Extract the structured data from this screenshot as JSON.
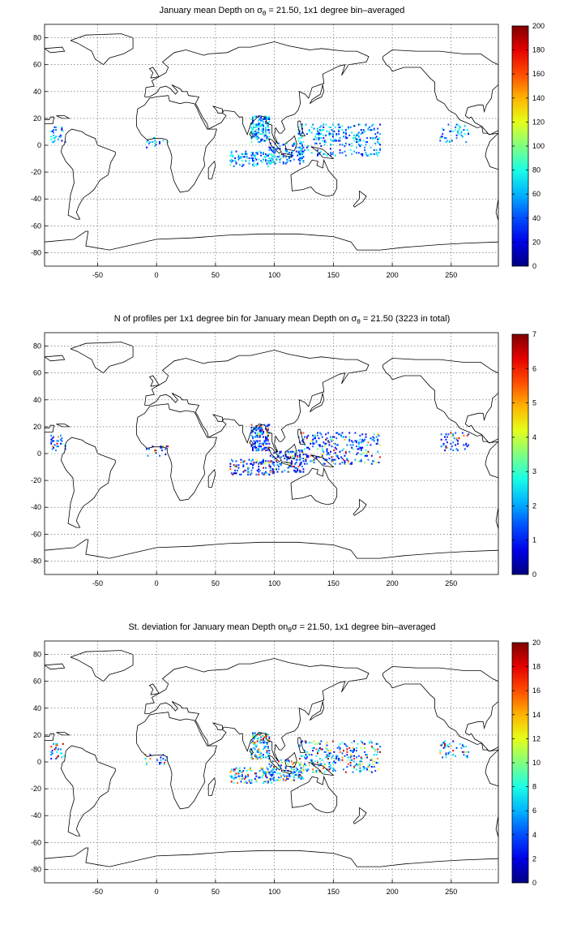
{
  "panels": [
    {
      "title_pre": "January mean Depth on σ",
      "title_sub": "θ",
      "title_post": " = 21.50, 1x1 degree bin–averaged",
      "colorbar": {
        "ticks": [
          "0",
          "20",
          "40",
          "60",
          "80",
          "100",
          "120",
          "140",
          "160",
          "180",
          "200"
        ],
        "min": 0,
        "max": 200
      },
      "layer": "mean-depth",
      "seed": 11
    },
    {
      "title_pre": "N of profiles per 1x1 degree bin for January mean Depth on σ",
      "title_sub": "θ",
      "title_post": " = 21.50 (3223 in total)",
      "colorbar": {
        "ticks": [
          "0",
          "1",
          "2",
          "3",
          "4",
          "5",
          "6",
          "7"
        ],
        "min": 0,
        "max": 7
      },
      "layer": "n-profiles",
      "seed": 23
    },
    {
      "title_pre": "St. deviation for January mean Depth on",
      "title_sub": "θ",
      "title_post": "σ = 21.50, 1x1 degree bin–averaged",
      "colorbar": {
        "ticks": [
          "0",
          "2",
          "4",
          "6",
          "8",
          "10",
          "12",
          "14",
          "16",
          "18",
          "20"
        ],
        "min": 0,
        "max": 20
      },
      "layer": "std-dev",
      "seed": 37
    }
  ],
  "axes": {
    "x_ticks": [
      "-50",
      "0",
      "50",
      "100",
      "150",
      "200",
      "250"
    ],
    "y_ticks": [
      "80",
      "60",
      "40",
      "20",
      "0",
      "-20",
      "-40",
      "-60",
      "-80"
    ],
    "xlim": [
      -95,
      290
    ],
    "ylim": [
      -90,
      90
    ],
    "grid": true,
    "colormap": "jet"
  }
}
